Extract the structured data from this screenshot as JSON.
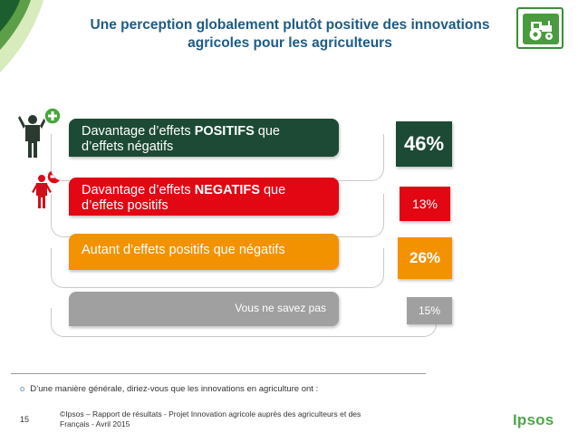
{
  "header": {
    "title_line1": "Une perception globalement plutôt positive des innovations",
    "title_line2": "agricoles pour les agriculteurs",
    "icon": "tractor-icon"
  },
  "chart_data": {
    "type": "bar",
    "categories": [
      "Davantage d'effets POSITIFS que d'effets négatifs",
      "Davantage d'effets NEGATIFS que d'effets positifs",
      "Autant d'effets positifs que négatifs",
      "Vous ne savez pas"
    ],
    "values": [
      46,
      13,
      26,
      15
    ],
    "unit": "%"
  },
  "rows": [
    {
      "line1_pre": "Davantage d’effets ",
      "line1_bold": "POSITIFS",
      "line1_post": " que",
      "line2": "d’effets négatifs",
      "value_label": "46%",
      "bar_color": "#1c4a35",
      "value_color": "#1c4a35",
      "icon": "person-plus-icon"
    },
    {
      "line1_pre": "Davantage d’effets ",
      "line1_bold": "NEGATIFS",
      "line1_post": " que",
      "line2": "d’effets positifs",
      "value_label": "13%",
      "bar_color": "#e30613",
      "value_color": "#e30613",
      "icon": "person-minus-icon"
    },
    {
      "line1_pre": "Autant d’effets positifs que négatifs",
      "line1_bold": "",
      "line1_post": "",
      "line2": "",
      "value_label": "26%",
      "bar_color": "#f39200",
      "value_color": "#f39200"
    },
    {
      "line1_pre": "Vous ne savez pas",
      "line1_bold": "",
      "line1_post": "",
      "line2": "",
      "value_label": "15%",
      "bar_color": "#a0a0a0",
      "value_color": "#a0a0a0"
    }
  ],
  "question": "D’une manière générale, diriez-vous que les innovations en agriculture ont :",
  "footer": {
    "page_number": "15",
    "source_line1": "©Ipsos – Rapport de résultats - Projet Innovation agricole auprès des agriculteurs et des",
    "source_line2": "Français - Avril 2015",
    "logo": "Ipsos"
  }
}
